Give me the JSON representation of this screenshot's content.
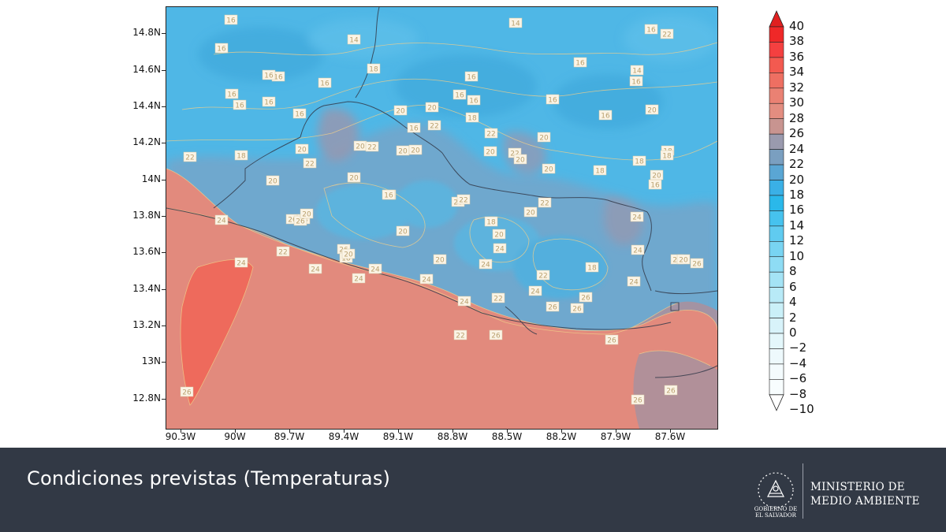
{
  "map": {
    "lat_labels": [
      "14.8N",
      "14.6N",
      "14.4N",
      "14.2N",
      "14N",
      "13.8N",
      "13.6N",
      "13.4N",
      "13.2N",
      "13N",
      "12.8N"
    ],
    "lon_labels": [
      "90.3W",
      "90W",
      "89.7W",
      "89.4W",
      "89.1W",
      "88.8W",
      "88.5W",
      "88.2W",
      "87.9W",
      "87.6W"
    ],
    "station_values": [
      "16",
      "16",
      "14",
      "14",
      "16",
      "16",
      "16",
      "16",
      "16",
      "20",
      "22",
      "18",
      "18",
      "16",
      "14",
      "16",
      "16",
      "16",
      "16",
      "16",
      "20",
      "16",
      "16",
      "18",
      "16",
      "22",
      "20",
      "16",
      "22",
      "20",
      "20",
      "18",
      "20",
      "20",
      "20",
      "20",
      "22",
      "22",
      "22",
      "20",
      "20",
      "22",
      "20",
      "20",
      "22",
      "22",
      "20",
      "18",
      "20",
      "20",
      "20",
      "24",
      "22",
      "24",
      "24",
      "24",
      "24",
      "24",
      "22",
      "24",
      "24",
      "24",
      "24",
      "22",
      "22",
      "26",
      "26",
      "26",
      "24",
      "26",
      "26",
      "24",
      "26",
      "26",
      "26",
      "24",
      "26",
      "24",
      "26",
      "26",
      "18",
      "20",
      "20",
      "18",
      "22",
      "20",
      "26",
      "16",
      "20",
      "18",
      "18",
      "18",
      "20",
      "16",
      "22",
      "16"
    ]
  },
  "colorbar": {
    "labels": [
      "40",
      "38",
      "36",
      "34",
      "32",
      "30",
      "28",
      "26",
      "24",
      "22",
      "20",
      "18",
      "16",
      "14",
      "12",
      "10",
      "8",
      "6",
      "4",
      "2",
      "0",
      "−2",
      "−4",
      "−6",
      "−8",
      "−10"
    ],
    "colors": [
      "#e02020",
      "#ef2828",
      "#f44040",
      "#f35a50",
      "#ee6f62",
      "#ea8173",
      "#e38d80",
      "#c89490",
      "#9a9aae",
      "#7a9fc0",
      "#5aa6d4",
      "#3ab0e6",
      "#2ab8ea",
      "#46c2ee",
      "#60cbf0",
      "#78d4f2",
      "#8edcf4",
      "#a4e3f5",
      "#b8eaf7",
      "#caf0f8",
      "#d8f3fa",
      "#e4f7fb",
      "#eef9fc",
      "#f4fbfd",
      "#f8fdfe",
      "#ffffff"
    ]
  },
  "footer": {
    "caption": "Condiciones previstas (Temperaturas)",
    "ministry_line1": "MINISTERIO DE",
    "ministry_line2": "MEDIO AMBIENTE",
    "gov_line1": "GOBIERNO DE",
    "gov_line2": "EL SALVADOR"
  }
}
